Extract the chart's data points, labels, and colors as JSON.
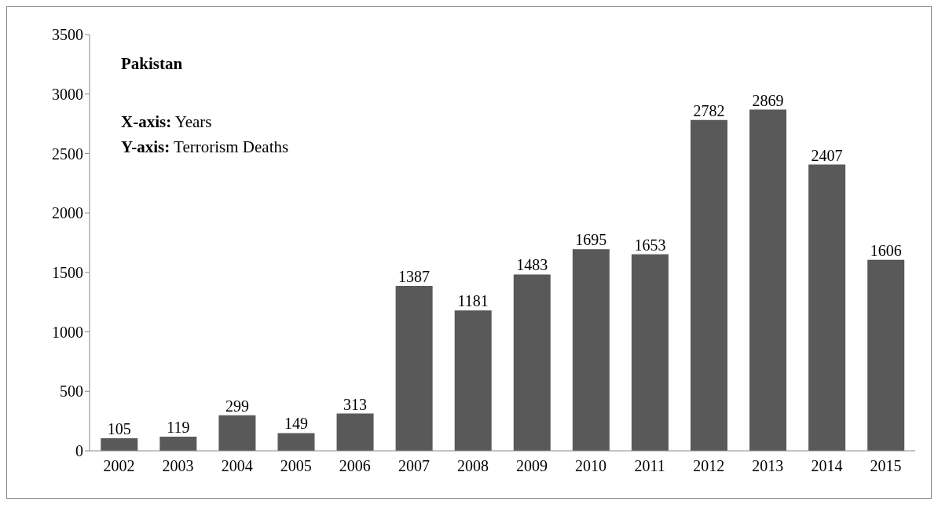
{
  "chart_data": {
    "type": "bar",
    "title": "Pakistan",
    "annotations": [
      "X-axis: Years",
      "Y-axis: Terrorism Deaths"
    ],
    "categories": [
      "2002",
      "2003",
      "2004",
      "2005",
      "2006",
      "2007",
      "2008",
      "2009",
      "2010",
      "2011",
      "2012",
      "2013",
      "2014",
      "2015"
    ],
    "values": [
      105,
      119,
      299,
      149,
      313,
      1387,
      1181,
      1483,
      1695,
      1653,
      2782,
      2869,
      2407,
      1606
    ],
    "color": "#595959",
    "ylim": [
      0,
      3500
    ],
    "yticks": [
      0,
      500,
      1000,
      1500,
      2000,
      2500,
      3000,
      3500
    ],
    "data_labels": true
  }
}
